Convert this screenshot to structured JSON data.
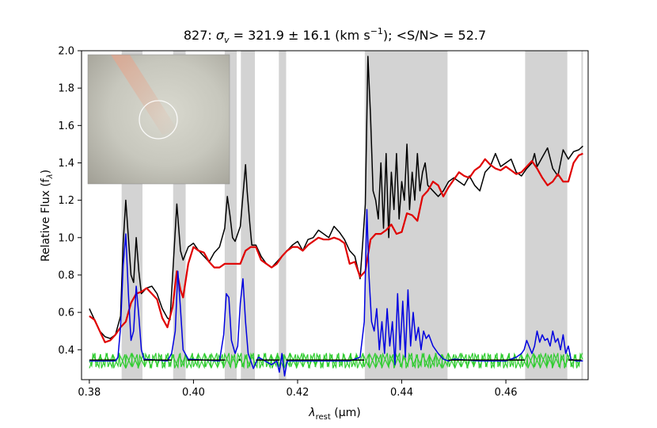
{
  "chart_data": {
    "type": "line",
    "title": {
      "galaxy_id": "827: ",
      "sigma_symbol": "σ",
      "sigma_sub": "v",
      "sigma_text": " = 321.9 ± 16.1 (km s",
      "unit_exp": "−1",
      "snr_text": "); <S/N> = 52.7"
    },
    "xlabel": {
      "symbol": "λ",
      "sub": "rest",
      "unit": " (μm)"
    },
    "ylabel": {
      "text": "Relative Flux (f",
      "sub": "λ",
      "close": ")"
    },
    "xlim": [
      0.3785,
      0.4758
    ],
    "ylim": [
      0.24,
      2.0
    ],
    "x_ticks": [
      0.38,
      0.4,
      0.42,
      0.44,
      0.46
    ],
    "x_tick_labels": [
      "0.38",
      "0.40",
      "0.42",
      "0.44",
      "0.46"
    ],
    "y_ticks": [
      0.4,
      0.6,
      0.8,
      1.0,
      1.2,
      1.4,
      1.6,
      1.8,
      2.0
    ],
    "y_tick_labels": [
      "0.4",
      "0.6",
      "0.8",
      "1.0",
      "1.2",
      "1.4",
      "1.6",
      "1.8",
      "2.0"
    ],
    "masked_regions": [
      [
        0.3862,
        0.3902
      ],
      [
        0.3961,
        0.3985
      ],
      [
        0.406,
        0.4083
      ],
      [
        0.4091,
        0.4118
      ],
      [
        0.4164,
        0.4178
      ],
      [
        0.4329,
        0.4488
      ],
      [
        0.4637,
        0.4718
      ],
      [
        0.4745,
        0.4748
      ]
    ],
    "series": [
      {
        "color": "#000000",
        "x": [
          0.38,
          0.381,
          0.382,
          0.383,
          0.384,
          0.385,
          0.386,
          0.3865,
          0.387,
          0.3875,
          0.388,
          0.3885,
          0.389,
          0.3895,
          0.39,
          0.391,
          0.392,
          0.393,
          0.394,
          0.395,
          0.3955,
          0.396,
          0.3968,
          0.3975,
          0.398,
          0.399,
          0.4,
          0.401,
          0.402,
          0.403,
          0.404,
          0.405,
          0.406,
          0.4065,
          0.407,
          0.4075,
          0.408,
          0.409,
          0.41,
          0.4103,
          0.4108,
          0.4112,
          0.412,
          0.413,
          0.414,
          0.415,
          0.416,
          0.417,
          0.418,
          0.419,
          0.42,
          0.421,
          0.422,
          0.423,
          0.424,
          0.425,
          0.426,
          0.427,
          0.428,
          0.429,
          0.43,
          0.431,
          0.432,
          0.4325,
          0.433,
          0.4335,
          0.434,
          0.4345,
          0.435,
          0.4355,
          0.436,
          0.4365,
          0.437,
          0.4375,
          0.438,
          0.4385,
          0.439,
          0.4395,
          0.44,
          0.4405,
          0.441,
          0.4415,
          0.442,
          0.4425,
          0.443,
          0.4435,
          0.444,
          0.4445,
          0.445,
          0.446,
          0.447,
          0.448,
          0.449,
          0.45,
          0.451,
          0.452,
          0.453,
          0.454,
          0.455,
          0.456,
          0.457,
          0.458,
          0.459,
          0.46,
          0.461,
          0.462,
          0.463,
          0.464,
          0.465,
          0.4655,
          0.466,
          0.467,
          0.468,
          0.469,
          0.47,
          0.471,
          0.472,
          0.473,
          0.474,
          0.4748
        ],
        "y": [
          0.62,
          0.56,
          0.5,
          0.47,
          0.46,
          0.48,
          0.58,
          0.97,
          1.2,
          1.0,
          0.8,
          0.76,
          1.0,
          0.82,
          0.7,
          0.73,
          0.74,
          0.7,
          0.62,
          0.57,
          0.56,
          0.8,
          1.18,
          0.93,
          0.88,
          0.95,
          0.97,
          0.93,
          0.9,
          0.87,
          0.92,
          0.95,
          1.05,
          1.22,
          1.12,
          1.0,
          0.98,
          1.06,
          1.39,
          1.25,
          1.08,
          0.96,
          0.96,
          0.9,
          0.86,
          0.84,
          0.87,
          0.9,
          0.93,
          0.96,
          0.98,
          0.93,
          0.99,
          1.0,
          1.04,
          1.02,
          1.0,
          1.06,
          1.03,
          0.99,
          0.93,
          0.9,
          0.78,
          0.97,
          1.18,
          1.97,
          1.65,
          1.25,
          1.2,
          1.1,
          1.4,
          1.05,
          1.45,
          1.0,
          1.35,
          1.15,
          1.45,
          1.1,
          1.3,
          1.2,
          1.5,
          1.15,
          1.35,
          1.2,
          1.45,
          1.25,
          1.35,
          1.4,
          1.28,
          1.25,
          1.22,
          1.25,
          1.3,
          1.32,
          1.3,
          1.28,
          1.33,
          1.28,
          1.25,
          1.35,
          1.38,
          1.45,
          1.38,
          1.4,
          1.42,
          1.35,
          1.33,
          1.37,
          1.4,
          1.45,
          1.38,
          1.43,
          1.48,
          1.37,
          1.33,
          1.47,
          1.42,
          1.46,
          1.47,
          1.49
        ]
      },
      {
        "color": "#e00000",
        "x": [
          0.38,
          0.381,
          0.382,
          0.383,
          0.384,
          0.385,
          0.386,
          0.387,
          0.388,
          0.389,
          0.39,
          0.391,
          0.392,
          0.393,
          0.394,
          0.395,
          0.396,
          0.3968,
          0.3975,
          0.398,
          0.399,
          0.4,
          0.401,
          0.402,
          0.403,
          0.404,
          0.405,
          0.406,
          0.407,
          0.408,
          0.409,
          0.41,
          0.411,
          0.412,
          0.413,
          0.414,
          0.415,
          0.416,
          0.417,
          0.418,
          0.419,
          0.42,
          0.421,
          0.422,
          0.423,
          0.424,
          0.425,
          0.426,
          0.427,
          0.428,
          0.429,
          0.43,
          0.431,
          0.432,
          0.433,
          0.434,
          0.435,
          0.436,
          0.437,
          0.438,
          0.439,
          0.44,
          0.441,
          0.442,
          0.443,
          0.444,
          0.445,
          0.446,
          0.447,
          0.448,
          0.449,
          0.45,
          0.451,
          0.452,
          0.453,
          0.454,
          0.455,
          0.456,
          0.457,
          0.458,
          0.459,
          0.46,
          0.461,
          0.462,
          0.463,
          0.464,
          0.465,
          0.466,
          0.467,
          0.468,
          0.469,
          0.47,
          0.471,
          0.472,
          0.473,
          0.474,
          0.4748
        ],
        "y": [
          0.58,
          0.56,
          0.5,
          0.44,
          0.45,
          0.48,
          0.52,
          0.55,
          0.65,
          0.7,
          0.71,
          0.73,
          0.7,
          0.67,
          0.57,
          0.52,
          0.63,
          0.82,
          0.72,
          0.68,
          0.86,
          0.95,
          0.93,
          0.92,
          0.87,
          0.84,
          0.84,
          0.86,
          0.86,
          0.86,
          0.86,
          0.93,
          0.95,
          0.95,
          0.88,
          0.86,
          0.84,
          0.86,
          0.9,
          0.93,
          0.95,
          0.95,
          0.93,
          0.96,
          0.98,
          1.0,
          0.99,
          0.99,
          1.0,
          0.99,
          0.97,
          0.86,
          0.87,
          0.79,
          0.82,
          0.99,
          1.02,
          1.02,
          1.04,
          1.07,
          1.02,
          1.03,
          1.13,
          1.12,
          1.09,
          1.22,
          1.25,
          1.3,
          1.28,
          1.22,
          1.27,
          1.31,
          1.35,
          1.33,
          1.32,
          1.36,
          1.38,
          1.42,
          1.39,
          1.37,
          1.36,
          1.38,
          1.36,
          1.34,
          1.35,
          1.38,
          1.41,
          1.37,
          1.32,
          1.28,
          1.3,
          1.34,
          1.3,
          1.3,
          1.4,
          1.44,
          1.45
        ]
      },
      {
        "color": "#0000e0",
        "x": [
          0.38,
          0.385,
          0.3855,
          0.386,
          0.3865,
          0.387,
          0.3875,
          0.388,
          0.3885,
          0.389,
          0.3895,
          0.39,
          0.3905,
          0.395,
          0.3958,
          0.3965,
          0.397,
          0.3975,
          0.398,
          0.399,
          0.405,
          0.4058,
          0.4063,
          0.4068,
          0.4073,
          0.408,
          0.4085,
          0.409,
          0.4095,
          0.41,
          0.4105,
          0.411,
          0.4115,
          0.4125,
          0.415,
          0.416,
          0.4165,
          0.417,
          0.4175,
          0.418,
          0.43,
          0.432,
          0.4328,
          0.4333,
          0.4337,
          0.4342,
          0.4347,
          0.4352,
          0.4357,
          0.4362,
          0.4367,
          0.4372,
          0.4377,
          0.4382,
          0.4387,
          0.4392,
          0.4397,
          0.4402,
          0.4407,
          0.4412,
          0.4417,
          0.4422,
          0.4427,
          0.4432,
          0.4437,
          0.4442,
          0.4447,
          0.4452,
          0.446,
          0.447,
          0.448,
          0.449,
          0.45,
          0.455,
          0.46,
          0.462,
          0.463,
          0.4635,
          0.464,
          0.465,
          0.4655,
          0.466,
          0.4665,
          0.467,
          0.4675,
          0.468,
          0.4685,
          0.469,
          0.4695,
          0.47,
          0.4705,
          0.471,
          0.4715,
          0.472,
          0.4725,
          0.4735,
          0.4748
        ],
        "y": [
          0.34,
          0.34,
          0.36,
          0.52,
          0.85,
          1.02,
          0.7,
          0.45,
          0.5,
          0.74,
          0.58,
          0.4,
          0.35,
          0.34,
          0.38,
          0.5,
          0.82,
          0.62,
          0.4,
          0.35,
          0.34,
          0.48,
          0.7,
          0.68,
          0.45,
          0.38,
          0.42,
          0.65,
          0.78,
          0.55,
          0.38,
          0.34,
          0.3,
          0.36,
          0.32,
          0.34,
          0.28,
          0.38,
          0.26,
          0.34,
          0.34,
          0.36,
          0.55,
          1.15,
          0.8,
          0.55,
          0.5,
          0.62,
          0.4,
          0.55,
          0.38,
          0.62,
          0.42,
          0.55,
          0.32,
          0.7,
          0.4,
          0.66,
          0.36,
          0.72,
          0.42,
          0.6,
          0.45,
          0.52,
          0.4,
          0.5,
          0.46,
          0.48,
          0.42,
          0.38,
          0.35,
          0.34,
          0.35,
          0.34,
          0.34,
          0.36,
          0.38,
          0.4,
          0.45,
          0.38,
          0.42,
          0.5,
          0.44,
          0.48,
          0.45,
          0.46,
          0.42,
          0.5,
          0.44,
          0.46,
          0.4,
          0.48,
          0.38,
          0.42,
          0.35,
          0.34,
          0.34
        ]
      },
      {
        "color": "#000000",
        "x": [
          0.38,
          0.383,
          0.383,
          0.385,
          0.3904,
          0.3958,
          0.3988,
          0.4061,
          0.4087,
          0.409,
          0.412,
          0.4165,
          0.4178,
          0.4328,
          0.449,
          0.4636,
          0.472,
          0.4745
        ],
        "y": [
          0.345,
          0.345,
          0.345,
          0.345,
          0.345,
          0.345,
          0.345,
          0.345,
          0.345,
          0.345,
          0.345,
          0.345,
          0.345,
          0.345,
          0.345,
          0.345,
          0.345,
          0.345
        ]
      }
    ],
    "noise_band": {
      "color": "#2ecc2e",
      "center": 0.345,
      "amplitude": 0.055
    },
    "inset": {
      "description_label": "galaxy image",
      "background_color": "#b8b8ae",
      "aperture_color": "#ffffff"
    }
  }
}
